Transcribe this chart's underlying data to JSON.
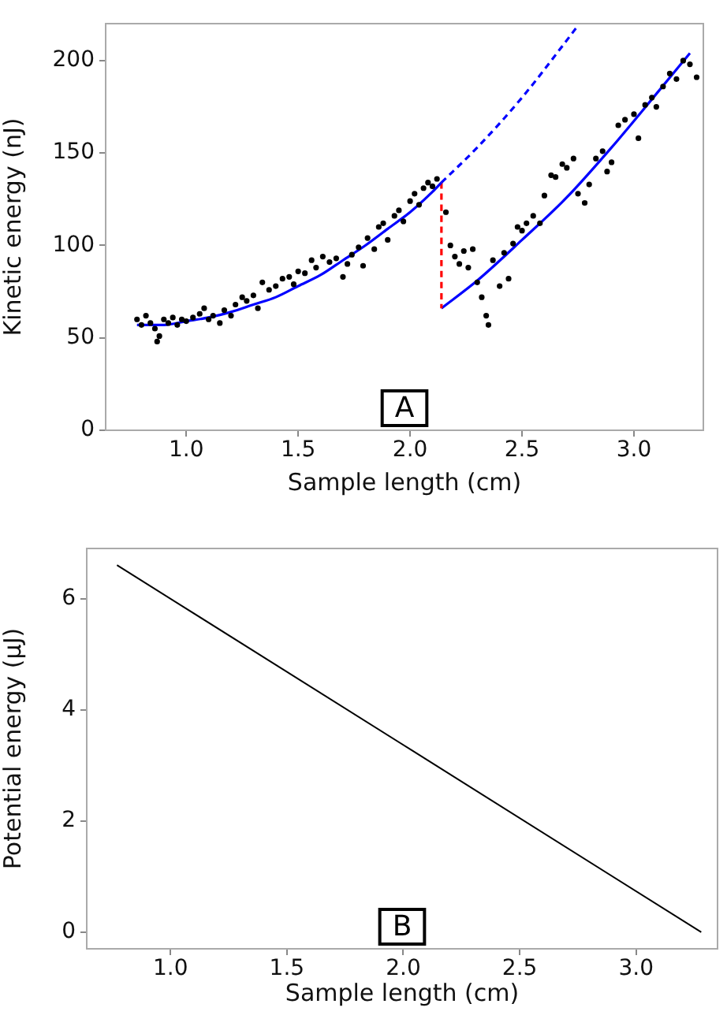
{
  "chart_data": [
    {
      "type": "scatter",
      "xlabel": "Sample length (cm)",
      "ylabel": "Kinetic energy (nJ)",
      "annotations": [
        "A"
      ],
      "xlim": [
        0.64,
        3.31
      ],
      "ylim": [
        0,
        220
      ],
      "xticks": [
        {
          "value": 1,
          "label": "1.0"
        },
        {
          "value": 1.5,
          "label": "1.5"
        },
        {
          "value": 2,
          "label": "2.0"
        },
        {
          "value": 2.5,
          "label": "2.5"
        },
        {
          "value": 3,
          "label": "3.0"
        }
      ],
      "yticks": [
        0,
        50,
        100,
        150,
        200
      ],
      "grid": false,
      "legend": false,
      "series": [
        {
          "color": "#000000",
          "marker": "circle",
          "x": [
            0.78,
            0.8,
            0.82,
            0.84,
            0.86,
            0.87,
            0.88,
            0.9,
            0.92,
            0.94,
            0.96,
            0.98,
            1.0,
            1.03,
            1.06,
            1.08,
            1.1,
            1.12,
            1.15,
            1.17,
            1.2,
            1.22,
            1.25,
            1.27,
            1.3,
            1.32,
            1.34,
            1.37,
            1.4,
            1.43,
            1.46,
            1.48,
            1.5,
            1.53,
            1.56,
            1.58,
            1.61,
            1.64,
            1.67,
            1.7,
            1.72,
            1.74,
            1.77,
            1.79,
            1.81,
            1.84,
            1.86,
            1.88,
            1.9,
            1.93,
            1.95,
            1.97,
            2.0,
            2.02,
            2.04,
            2.06,
            2.08,
            2.1,
            2.12,
            2.16,
            2.18,
            2.2,
            2.22,
            2.24,
            2.26,
            2.28,
            2.3,
            2.32,
            2.34,
            2.35,
            2.37,
            2.4,
            2.42,
            2.44,
            2.46,
            2.48,
            2.5,
            2.52,
            2.55,
            2.58,
            2.6,
            2.63,
            2.65,
            2.68,
            2.7,
            2.73,
            2.75,
            2.78,
            2.8,
            2.83,
            2.86,
            2.88,
            2.9,
            2.93,
            2.96,
            3.0,
            3.02,
            3.05,
            3.08,
            3.1,
            3.13,
            3.16,
            3.19,
            3.22,
            3.25,
            3.28
          ],
          "values": [
            60,
            57,
            62,
            58,
            55,
            48,
            51,
            60,
            58,
            61,
            57,
            60,
            59,
            61,
            63,
            66,
            60,
            62,
            58,
            65,
            62,
            68,
            72,
            70,
            73,
            66,
            80,
            76,
            78,
            82,
            83,
            79,
            86,
            85,
            92,
            88,
            94,
            91,
            93,
            83,
            90,
            95,
            99,
            89,
            104,
            98,
            110,
            112,
            103,
            116,
            119,
            113,
            124,
            128,
            122,
            131,
            134,
            132,
            136,
            118,
            100,
            94,
            90,
            97,
            88,
            98,
            80,
            72,
            62,
            57,
            92,
            78,
            96,
            82,
            101,
            110,
            108,
            112,
            116,
            112,
            127,
            138,
            137,
            144,
            142,
            147,
            128,
            123,
            133,
            147,
            151,
            140,
            145,
            165,
            168,
            171,
            158,
            176,
            180,
            175,
            186,
            193,
            190,
            200,
            198,
            191
          ]
        },
        {
          "type": "line",
          "color": "#0000ff",
          "line_style": "solid",
          "x": [
            0.78,
            0.9,
            1.0,
            1.1,
            1.2,
            1.3,
            1.4,
            1.5,
            1.6,
            1.7,
            1.8,
            1.9,
            2.0,
            2.1,
            2.14
          ],
          "values": [
            57,
            57,
            59,
            61,
            64,
            68,
            72,
            78,
            84,
            92,
            100,
            109,
            118,
            129,
            134
          ]
        },
        {
          "type": "line",
          "color": "#0000ff",
          "line_style": "dashed",
          "x": [
            2.14,
            2.3,
            2.5,
            2.7,
            2.75
          ],
          "values": [
            134,
            153,
            180,
            211,
            219
          ]
        },
        {
          "type": "line",
          "color": "#ff0000",
          "line_style": "dashed",
          "x": [
            2.14,
            2.14
          ],
          "values": [
            134,
            66
          ]
        },
        {
          "type": "line",
          "color": "#0000ff",
          "line_style": "solid",
          "x": [
            2.14,
            2.3,
            2.5,
            2.7,
            2.9,
            3.1,
            3.25
          ],
          "values": [
            66,
            81,
            103,
            126,
            153,
            182,
            204
          ]
        }
      ]
    },
    {
      "type": "line",
      "xlabel": "Sample length (cm)",
      "ylabel": "Potential energy (µJ)",
      "annotations": [
        "B"
      ],
      "xlim": [
        0.64,
        3.35
      ],
      "ylim": [
        -0.3,
        6.9
      ],
      "xticks": [
        {
          "value": 1,
          "label": "1.0"
        },
        {
          "value": 1.5,
          "label": "1.5"
        },
        {
          "value": 2,
          "label": "2.0"
        },
        {
          "value": 2.5,
          "label": "2.5"
        },
        {
          "value": 3,
          "label": "3.0"
        }
      ],
      "yticks": [
        0,
        2,
        4,
        6
      ],
      "grid": false,
      "legend": false,
      "series": [
        {
          "color": "#000000",
          "line_style": "solid",
          "x": [
            0.77,
            3.28
          ],
          "values": [
            6.6,
            0
          ]
        }
      ]
    }
  ]
}
